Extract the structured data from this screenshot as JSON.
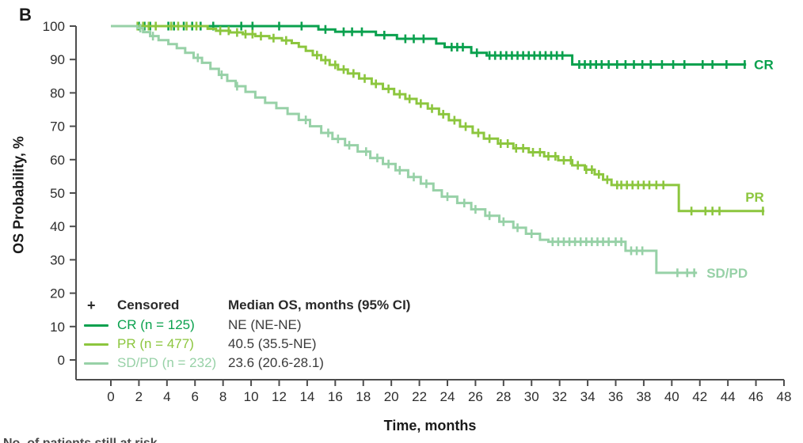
{
  "panel_label": "B",
  "colors": {
    "cr": "#0aa14e",
    "pr": "#8cc63e",
    "sdpd": "#97d1a7",
    "axis": "#4d4d4d",
    "tick_text": "#2d2d2d",
    "bold_text": "#1a1a1a"
  },
  "legend": {
    "censored_symbol": "+",
    "censored_label": "Censored",
    "median_header": "Median OS, months (95% CI)",
    "rows": [
      {
        "key": "cr",
        "label": "CR (n = 125)",
        "median": "NE (NE-NE)"
      },
      {
        "key": "pr",
        "label": "PR (n = 477)",
        "median": "40.5 (35.5-NE)"
      },
      {
        "key": "sdpd",
        "label": "SD/PD (n = 232)",
        "median": "23.6 (20.6-28.1)"
      }
    ]
  },
  "footer_partial": "No. of patients still at risk",
  "chart_data": {
    "type": "line",
    "subtype": "kaplan-meier-step",
    "title": "",
    "xlabel": "Time, months",
    "ylabel": "OS Probability, %",
    "xlim": [
      0,
      48
    ],
    "ylim": [
      0,
      100
    ],
    "x_ticks": [
      0,
      2,
      4,
      6,
      8,
      10,
      12,
      14,
      16,
      18,
      20,
      22,
      24,
      26,
      28,
      30,
      32,
      34,
      36,
      38,
      40,
      42,
      44,
      46,
      48
    ],
    "y_ticks": [
      0,
      10,
      20,
      30,
      40,
      50,
      60,
      70,
      80,
      90,
      100
    ],
    "grid": false,
    "legend_position": "inside-lower-left",
    "series": [
      {
        "name": "CR",
        "n": 125,
        "color_key": "cr",
        "end_label": "CR",
        "median_os": "NE (NE-NE)",
        "steps": [
          [
            0,
            100
          ],
          [
            14.8,
            99.0
          ],
          [
            16.0,
            98.3
          ],
          [
            18.9,
            97.3
          ],
          [
            20.4,
            96.2
          ],
          [
            23.2,
            94.8
          ],
          [
            23.8,
            93.7
          ],
          [
            25.7,
            92.0
          ],
          [
            26.8,
            91.2
          ],
          [
            32.9,
            88.5
          ],
          [
            45.3,
            88.5
          ]
        ],
        "censor_times": [
          2.0,
          2.4,
          2.8,
          4.1,
          4.5,
          5.2,
          5.8,
          6.4,
          7.3,
          9.3,
          10.1,
          12.0,
          13.6,
          15.3,
          16.6,
          17.2,
          17.9,
          19.5,
          21.0,
          21.6,
          22.3,
          24.3,
          24.7,
          25.1,
          26.1,
          27.0,
          27.4,
          27.8,
          28.2,
          28.6,
          29.0,
          29.4,
          29.8,
          30.2,
          30.6,
          31.0,
          31.4,
          31.8,
          32.2,
          33.4,
          33.8,
          34.2,
          34.6,
          35.0,
          35.5,
          36.1,
          36.7,
          37.3,
          37.9,
          38.5,
          39.3,
          40.1,
          40.9,
          42.2,
          42.9,
          43.9,
          45.2
        ]
      },
      {
        "name": "PR",
        "n": 477,
        "color_key": "pr",
        "end_label": "PR",
        "median_os": "40.5 (35.5-NE)",
        "steps": [
          [
            0,
            100
          ],
          [
            6.9,
            99.2
          ],
          [
            7.5,
            98.6
          ],
          [
            8.5,
            98.1
          ],
          [
            9.4,
            97.6
          ],
          [
            10.3,
            97.0
          ],
          [
            11.3,
            96.4
          ],
          [
            12.2,
            95.7
          ],
          [
            12.9,
            94.9
          ],
          [
            13.4,
            93.8
          ],
          [
            13.9,
            92.6
          ],
          [
            14.4,
            91.3
          ],
          [
            15.0,
            89.8
          ],
          [
            15.6,
            88.4
          ],
          [
            16.2,
            87.0
          ],
          [
            16.9,
            85.8
          ],
          [
            17.7,
            84.3
          ],
          [
            18.6,
            82.7
          ],
          [
            19.4,
            81.2
          ],
          [
            20.2,
            79.6
          ],
          [
            21.0,
            78.2
          ],
          [
            21.8,
            76.8
          ],
          [
            22.6,
            75.3
          ],
          [
            23.4,
            73.6
          ],
          [
            24.1,
            71.8
          ],
          [
            24.9,
            69.9
          ],
          [
            25.8,
            68.0
          ],
          [
            26.6,
            66.3
          ],
          [
            27.6,
            64.8
          ],
          [
            28.7,
            63.4
          ],
          [
            29.8,
            62.2
          ],
          [
            30.9,
            61.0
          ],
          [
            31.9,
            59.8
          ],
          [
            32.9,
            58.3
          ],
          [
            33.8,
            57.0
          ],
          [
            34.5,
            55.6
          ],
          [
            35.1,
            54.0
          ],
          [
            35.7,
            52.4
          ],
          [
            40.5,
            44.6
          ],
          [
            46.6,
            44.6
          ]
        ],
        "censor_times": [
          1.9,
          2.3,
          2.7,
          3.2,
          4.3,
          4.8,
          5.4,
          6.1,
          7.8,
          8.4,
          9.0,
          9.6,
          10.1,
          10.7,
          11.6,
          12.5,
          14.7,
          15.3,
          16.0,
          16.6,
          17.3,
          18.1,
          18.9,
          19.8,
          20.6,
          21.3,
          22.1,
          22.9,
          23.7,
          24.5,
          25.3,
          26.2,
          27.0,
          27.8,
          28.3,
          28.9,
          29.4,
          30.1,
          30.6,
          31.2,
          31.7,
          32.3,
          32.8,
          33.3,
          33.9,
          34.3,
          34.8,
          35.4,
          36.1,
          36.4,
          36.8,
          37.2,
          37.6,
          38.0,
          38.4,
          38.9,
          39.4,
          41.4,
          42.4,
          42.9,
          43.4,
          46.5
        ]
      },
      {
        "name": "SD/PD",
        "n": 232,
        "color_key": "sdpd",
        "end_label": "SD/PD",
        "median_os": "23.6 (20.6-28.1)",
        "steps": [
          [
            0,
            100
          ],
          [
            1.9,
            99.4
          ],
          [
            2.3,
            98.2
          ],
          [
            2.8,
            97.0
          ],
          [
            3.4,
            95.8
          ],
          [
            4.1,
            94.6
          ],
          [
            4.7,
            93.4
          ],
          [
            5.3,
            92.0
          ],
          [
            5.9,
            90.5
          ],
          [
            6.5,
            89.0
          ],
          [
            7.1,
            87.2
          ],
          [
            7.7,
            85.4
          ],
          [
            8.3,
            83.6
          ],
          [
            8.9,
            82.0
          ],
          [
            9.6,
            80.3
          ],
          [
            10.3,
            78.6
          ],
          [
            11.0,
            77.0
          ],
          [
            11.8,
            75.4
          ],
          [
            12.6,
            73.7
          ],
          [
            13.4,
            71.9
          ],
          [
            14.2,
            70.0
          ],
          [
            15.0,
            68.0
          ],
          [
            15.8,
            66.2
          ],
          [
            16.7,
            64.3
          ],
          [
            17.6,
            62.4
          ],
          [
            18.5,
            60.5
          ],
          [
            19.4,
            58.7
          ],
          [
            20.3,
            56.8
          ],
          [
            21.2,
            54.8
          ],
          [
            22.1,
            52.8
          ],
          [
            23.0,
            50.8
          ],
          [
            23.6,
            48.9
          ],
          [
            24.7,
            47.0
          ],
          [
            25.7,
            45.1
          ],
          [
            26.7,
            43.2
          ],
          [
            27.7,
            41.4
          ],
          [
            28.7,
            39.6
          ],
          [
            29.6,
            37.8
          ],
          [
            30.6,
            36.0
          ],
          [
            31.2,
            35.4
          ],
          [
            36.7,
            32.7
          ],
          [
            38.9,
            26.1
          ],
          [
            41.8,
            26.1
          ]
        ],
        "censor_times": [
          2.1,
          3.0,
          6.2,
          7.9,
          9.0,
          13.9,
          15.5,
          16.2,
          17.0,
          18.2,
          19.0,
          19.8,
          20.6,
          21.6,
          22.5,
          24.0,
          25.2,
          26.0,
          27.0,
          28.0,
          29.0,
          30.0,
          31.5,
          31.9,
          32.3,
          32.7,
          33.1,
          33.5,
          33.9,
          34.3,
          34.7,
          35.1,
          35.5,
          36.0,
          36.4,
          37.1,
          37.5,
          37.9,
          40.4,
          41.1,
          41.6
        ]
      }
    ]
  }
}
